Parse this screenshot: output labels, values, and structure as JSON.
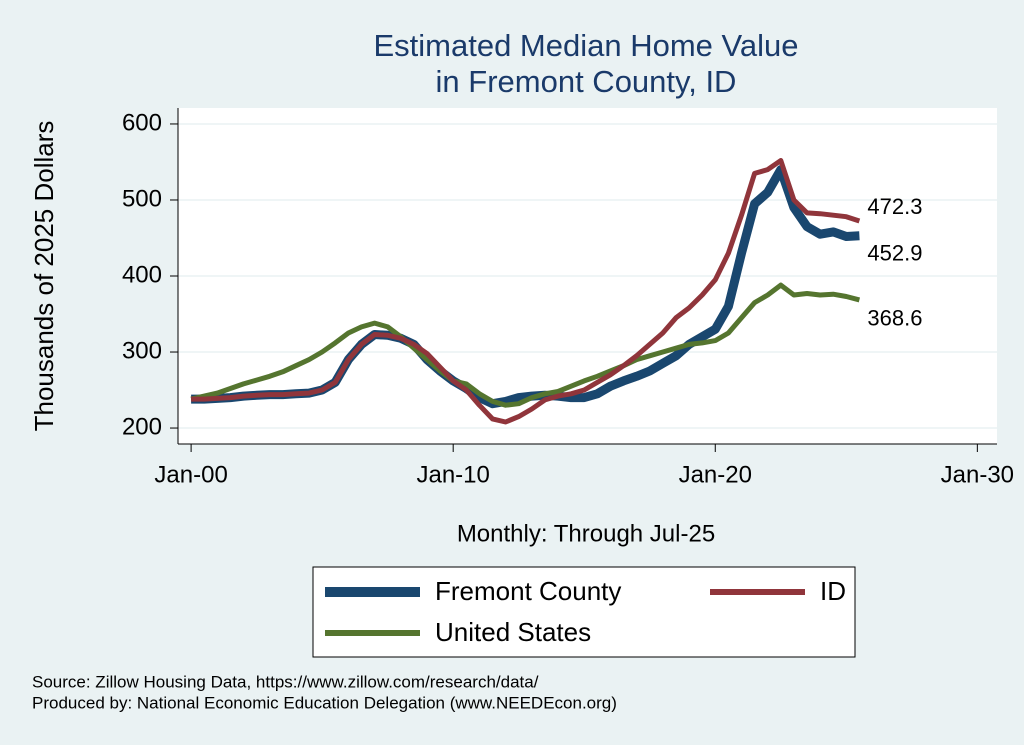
{
  "chart_data": {
    "type": "line",
    "title": [
      "Estimated Median Home Value",
      "in Fremont County, ID"
    ],
    "y_label": "Thousands of 2025 Dollars",
    "x_label": "Monthly: Through Jul-25",
    "x": [
      "Jan-00",
      "Jul-00",
      "Jan-01",
      "Jul-01",
      "Jan-02",
      "Jul-02",
      "Jan-03",
      "Jul-03",
      "Jan-04",
      "Jul-04",
      "Jan-05",
      "Jul-05",
      "Jan-06",
      "Jul-06",
      "Jan-07",
      "Jul-07",
      "Jan-08",
      "Jul-08",
      "Jan-09",
      "Jul-09",
      "Jan-10",
      "Jul-10",
      "Jan-11",
      "Jul-11",
      "Jan-12",
      "Jul-12",
      "Jan-13",
      "Jul-13",
      "Jan-14",
      "Jul-14",
      "Jan-15",
      "Jul-15",
      "Jan-16",
      "Jul-16",
      "Jan-17",
      "Jul-17",
      "Jan-18",
      "Jul-18",
      "Jan-19",
      "Jul-19",
      "Jan-20",
      "Jul-20",
      "Jan-21",
      "Jul-21",
      "Jan-22",
      "Jul-22",
      "Jan-23",
      "Jul-23",
      "Jan-24",
      "Jul-24",
      "Jan-25",
      "Jul-25"
    ],
    "series": [
      {
        "name": "Fremont County",
        "color": "#1a476f",
        "values": [
          238,
          238,
          239,
          240,
          242,
          243,
          244,
          244,
          245,
          246,
          250,
          260,
          290,
          310,
          323,
          322,
          318,
          310,
          290,
          275,
          262,
          252,
          240,
          232,
          235,
          240,
          242,
          243,
          242,
          240,
          240,
          245,
          255,
          262,
          268,
          275,
          285,
          295,
          310,
          320,
          330,
          360,
          430,
          495,
          510,
          540,
          490,
          465,
          455,
          458,
          452,
          452.9
        ]
      },
      {
        "name": "ID",
        "color": "#90353b",
        "values": [
          238,
          238,
          239,
          240,
          242,
          243,
          244,
          244,
          245,
          246,
          250,
          260,
          290,
          310,
          323,
          322,
          318,
          310,
          298,
          280,
          262,
          250,
          230,
          212,
          208,
          215,
          225,
          237,
          242,
          245,
          250,
          260,
          270,
          282,
          295,
          310,
          325,
          345,
          358,
          375,
          395,
          430,
          480,
          535,
          540,
          552,
          500,
          483,
          482,
          480,
          478,
          472.3
        ]
      },
      {
        "name": "United States",
        "color": "#55752f",
        "values": [
          238,
          242,
          246,
          252,
          258,
          263,
          268,
          274,
          282,
          290,
          300,
          312,
          325,
          333,
          338,
          333,
          320,
          305,
          290,
          275,
          262,
          258,
          245,
          235,
          230,
          232,
          240,
          245,
          248,
          255,
          262,
          268,
          275,
          282,
          290,
          295,
          300,
          305,
          310,
          312,
          315,
          325,
          345,
          365,
          375,
          388,
          375,
          377,
          375,
          376,
          373,
          368.6
        ]
      }
    ],
    "xlim": [
      "Jul-99",
      "Oct-30"
    ],
    "xticks": [
      "Jan-00",
      "Jan-10",
      "Jan-20",
      "Jan-30"
    ],
    "ylim": [
      179,
      621
    ],
    "yticks": [
      200,
      300,
      400,
      500,
      600
    ],
    "grid": true,
    "source": [
      "Source: Zillow Housing Data, https://www.zillow.com/research/data/",
      "Produced by: National Economic Education Delegation (www.NEEDEcon.org)"
    ]
  }
}
